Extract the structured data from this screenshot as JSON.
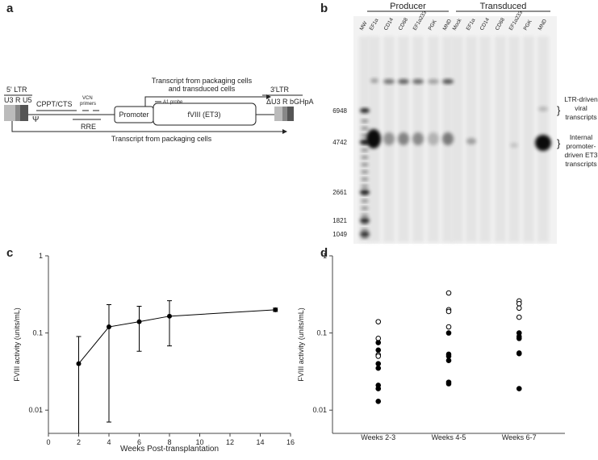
{
  "panel_labels": [
    "a",
    "b",
    "c",
    "d"
  ],
  "diagram": {
    "ltr5": "5' LTR",
    "u3r_u5": "U3  R U5",
    "cppt": "CPPT/CTS",
    "vcn": [
      "VCN",
      "primers"
    ],
    "psi": "Ψ",
    "rre": "RRE",
    "promoter": "Promoter",
    "fviii": "fVIII (ET3)",
    "top_transcript": [
      "Transcript from packaging cells",
      "and transduced cells"
    ],
    "a1_probe": "A1 probe",
    "ltr3": "3'LTR",
    "ltr3_parts": "ΔU3 R  bGHpA",
    "bottom_transcript": "Transcript from packaging cells"
  },
  "gel": {
    "groups": [
      "Producer",
      "Transduced"
    ],
    "lanes": [
      "MW",
      "EF1α",
      "CD14",
      "CD68",
      "EF1α233",
      "PGK",
      "MND",
      "Mock",
      "EF1α",
      "CD14",
      "CD68",
      "EF1α233",
      "PGK",
      "MND"
    ],
    "markers": [
      6948,
      4742,
      2661,
      1821,
      1049
    ],
    "annotations": [
      [
        "LTR-driven",
        "viral",
        "transcripts"
      ],
      [
        "Internal",
        "promoter-",
        "driven ET3",
        "transcripts"
      ]
    ]
  },
  "chart_data": [
    {
      "type": "line",
      "y_label": "FVIII activity (units/mL)",
      "x_label": "Weeks Post-transplantation",
      "x": [
        2,
        4,
        6,
        8,
        15
      ],
      "series": [
        {
          "color": "#000000",
          "values": [
            0.04,
            0.12,
            0.14,
            0.165,
            0.2
          ],
          "errors": [
            0.05,
            0.113,
            0.082,
            0.097,
            0.01
          ]
        }
      ],
      "xlim": [
        0,
        16
      ],
      "xticks": [
        0,
        2,
        4,
        6,
        8,
        10,
        12,
        14,
        16
      ],
      "ylim": [
        0.005,
        1
      ],
      "yticks": [
        0.01,
        0.1,
        1
      ],
      "log_y": true
    },
    {
      "type": "dot",
      "y_label": "FVIII activity (units/mL)",
      "categories": [
        "Weeks 2-3",
        "Weeks 4-5",
        "Weeks 6-7"
      ],
      "series": [
        {
          "color": "#ffffff",
          "stroke": "#000000",
          "values": [
            [
              0.14,
              0.085,
              0.052,
              0.05
            ],
            [
              0.33,
              0.2,
              0.19,
              0.12
            ],
            [
              0.26,
              0.24,
              0.21,
              0.16
            ]
          ]
        },
        {
          "color": "#000000",
          "stroke": "#000000",
          "values": [
            [
              0.075,
              0.06,
              0.04,
              0.035,
              0.021,
              0.019,
              0.013
            ],
            [
              0.1,
              0.053,
              0.05,
              0.044,
              0.023,
              0.022
            ],
            [
              0.1,
              0.09,
              0.085,
              0.055,
              0.054,
              0.019
            ]
          ]
        }
      ],
      "ylim": [
        0.005,
        1
      ],
      "yticks": [
        0.01,
        0.1,
        1
      ],
      "log_y": true
    }
  ]
}
